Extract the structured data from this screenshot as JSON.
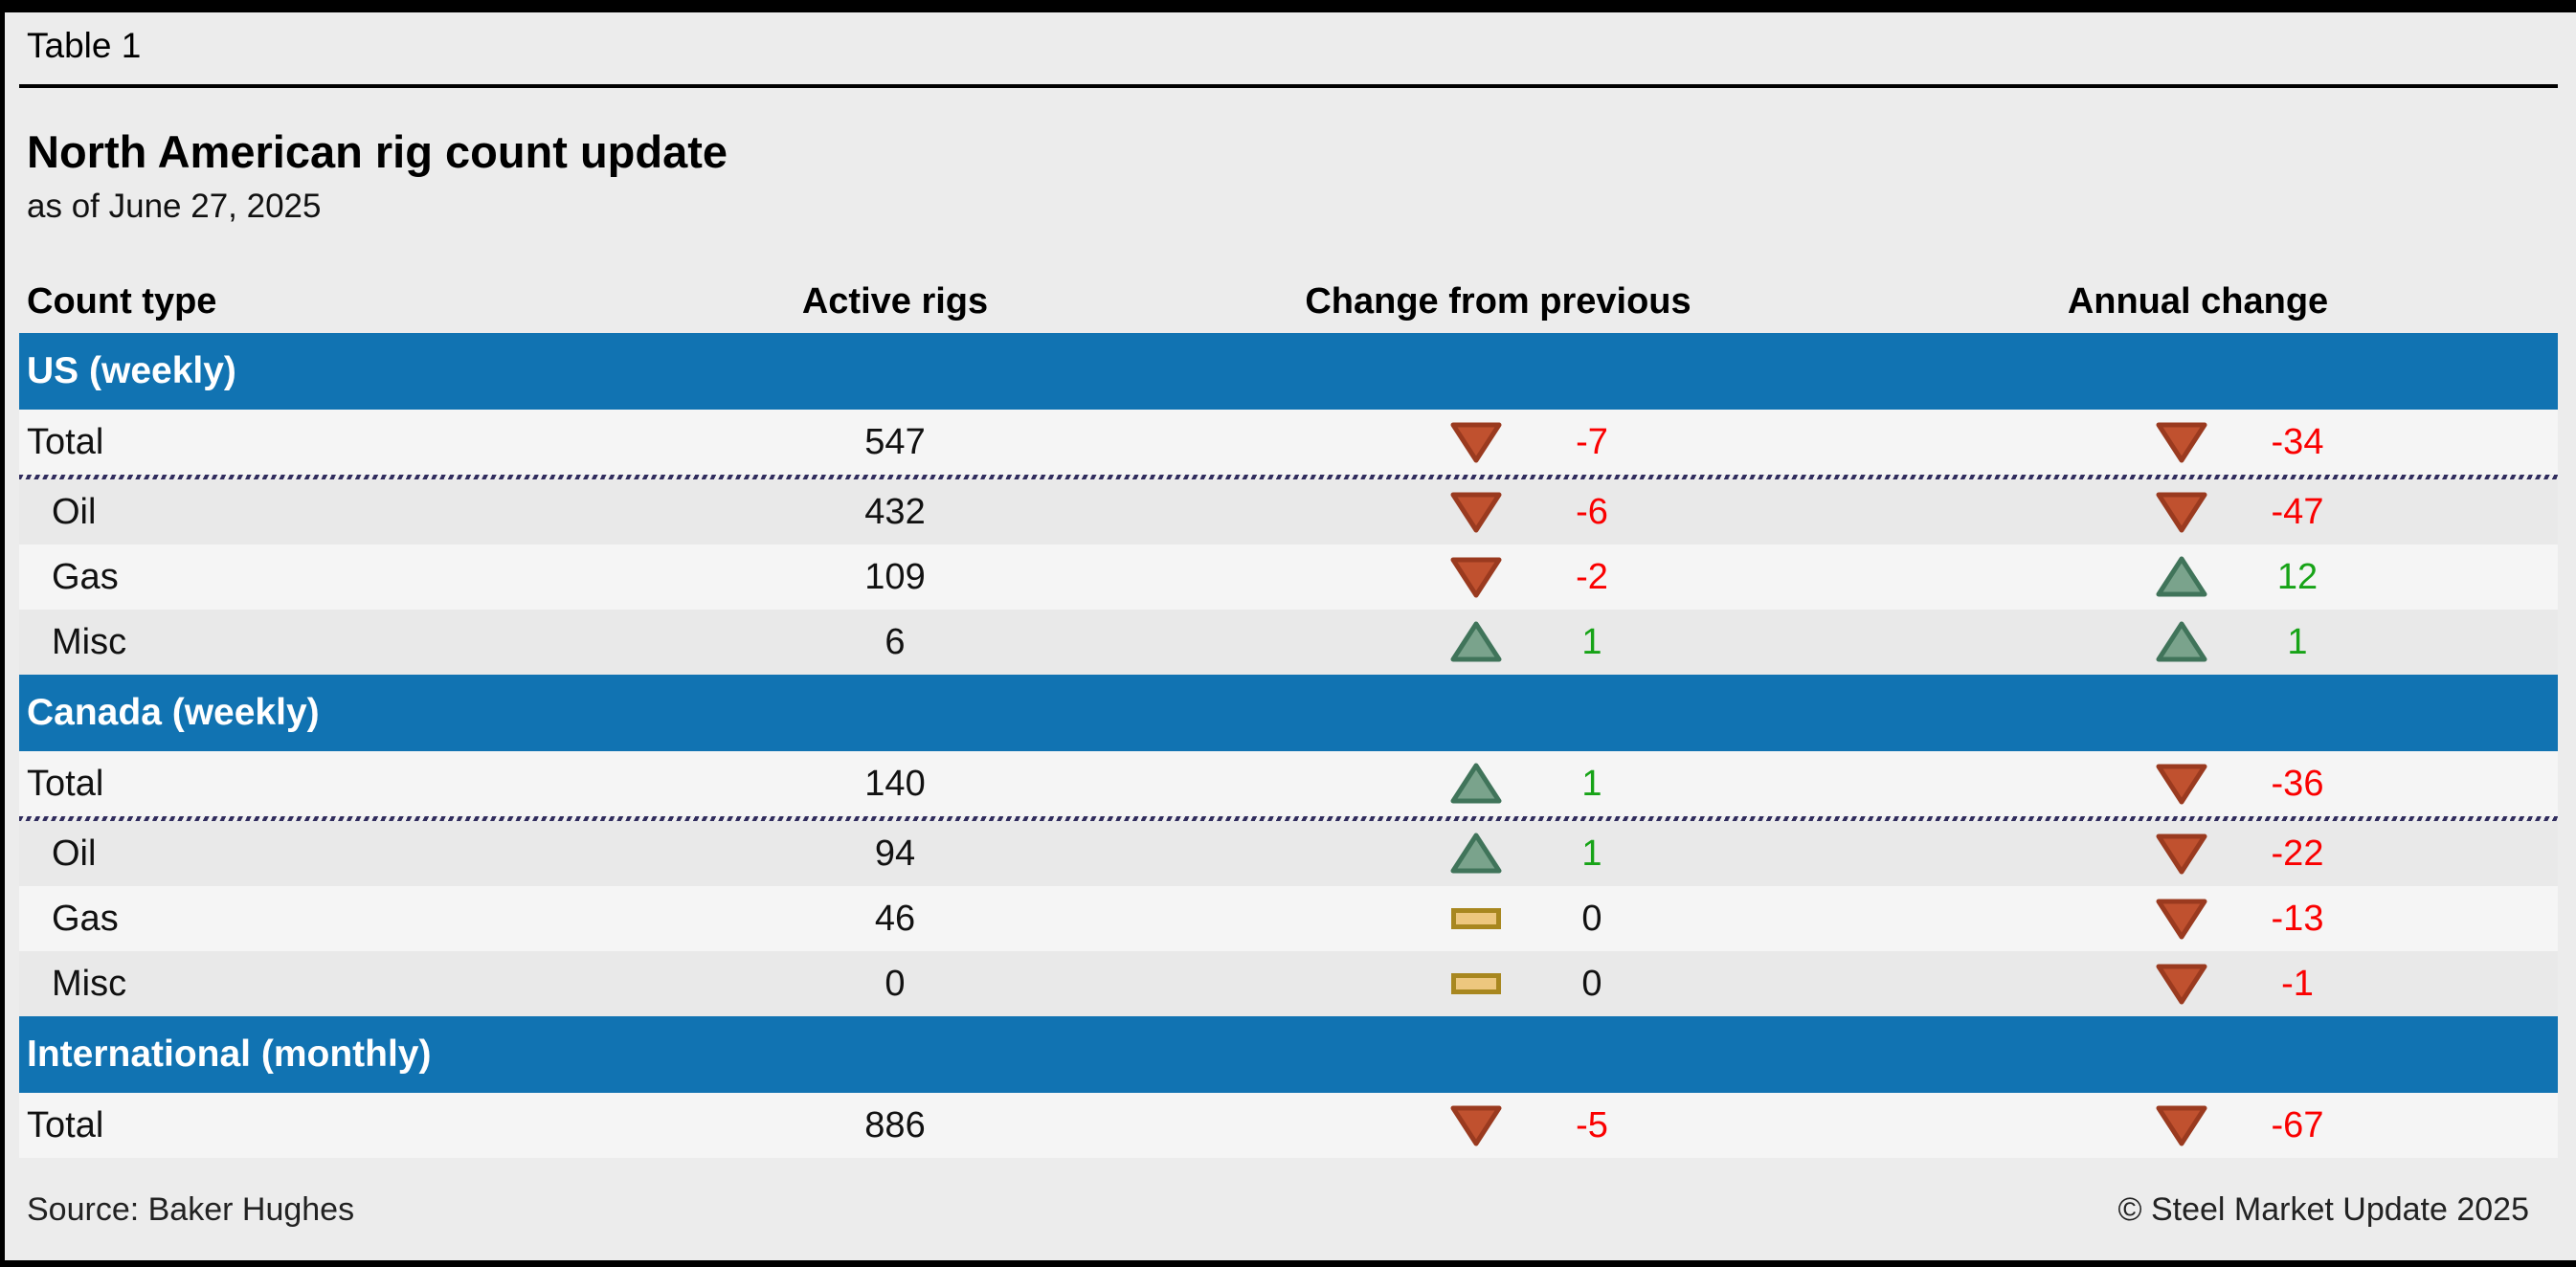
{
  "table_label": "Table 1",
  "subtitle": "as of June 27, 2025",
  "chart_data": {
    "type": "table",
    "title": "North American rig count update",
    "columns": [
      "Count type",
      "Active rigs",
      "Change from previous",
      "Annual change"
    ],
    "sections": [
      {
        "label": "US (weekly)",
        "rows": [
          {
            "label": "Total",
            "active_rigs": 547,
            "change": -7,
            "change_dir": "down",
            "annual": -34,
            "annual_dir": "down",
            "total": true
          },
          {
            "label": "Oil",
            "active_rigs": 432,
            "change": -6,
            "change_dir": "down",
            "annual": -47,
            "annual_dir": "down"
          },
          {
            "label": "Gas",
            "active_rigs": 109,
            "change": -2,
            "change_dir": "down",
            "annual": 12,
            "annual_dir": "up"
          },
          {
            "label": "Misc",
            "active_rigs": 6,
            "change": 1,
            "change_dir": "up",
            "annual": 1,
            "annual_dir": "up"
          }
        ]
      },
      {
        "label": "Canada (weekly)",
        "rows": [
          {
            "label": "Total",
            "active_rigs": 140,
            "change": 1,
            "change_dir": "up",
            "annual": -36,
            "annual_dir": "down",
            "total": true
          },
          {
            "label": "Oil",
            "active_rigs": 94,
            "change": 1,
            "change_dir": "up",
            "annual": -22,
            "annual_dir": "down"
          },
          {
            "label": "Gas",
            "active_rigs": 46,
            "change": 0,
            "change_dir": "flat",
            "annual": -13,
            "annual_dir": "down"
          },
          {
            "label": "Misc",
            "active_rigs": 0,
            "change": 0,
            "change_dir": "flat",
            "annual": -1,
            "annual_dir": "down"
          }
        ]
      },
      {
        "label": "International (monthly)",
        "rows": [
          {
            "label": "Total",
            "active_rigs": 886,
            "change": -5,
            "change_dir": "down",
            "annual": -67,
            "annual_dir": "down",
            "total": true
          }
        ]
      }
    ]
  },
  "footer": {
    "source": "Source: Baker Hughes",
    "copyright": "© Steel Market Update 2025"
  },
  "icons": {
    "down": "down-triangle-icon",
    "up": "up-triangle-icon",
    "flat": "flat-bar-icon"
  },
  "colors": {
    "band_blue": "#1173b2",
    "row_light": "#f5f5f5",
    "row_dark": "#e9e9e9",
    "negative_text": "#fa0000",
    "positive_text": "#17a317",
    "down_triangle_fill": "#c0512f",
    "down_triangle_edge": "#9a3a1f",
    "up_triangle_fill": "#7aa38c",
    "up_triangle_edge": "#40745a",
    "flat_bar_fill": "#edc77e",
    "flat_bar_edge": "#a8871f",
    "separator_navy": "#312d5e"
  }
}
